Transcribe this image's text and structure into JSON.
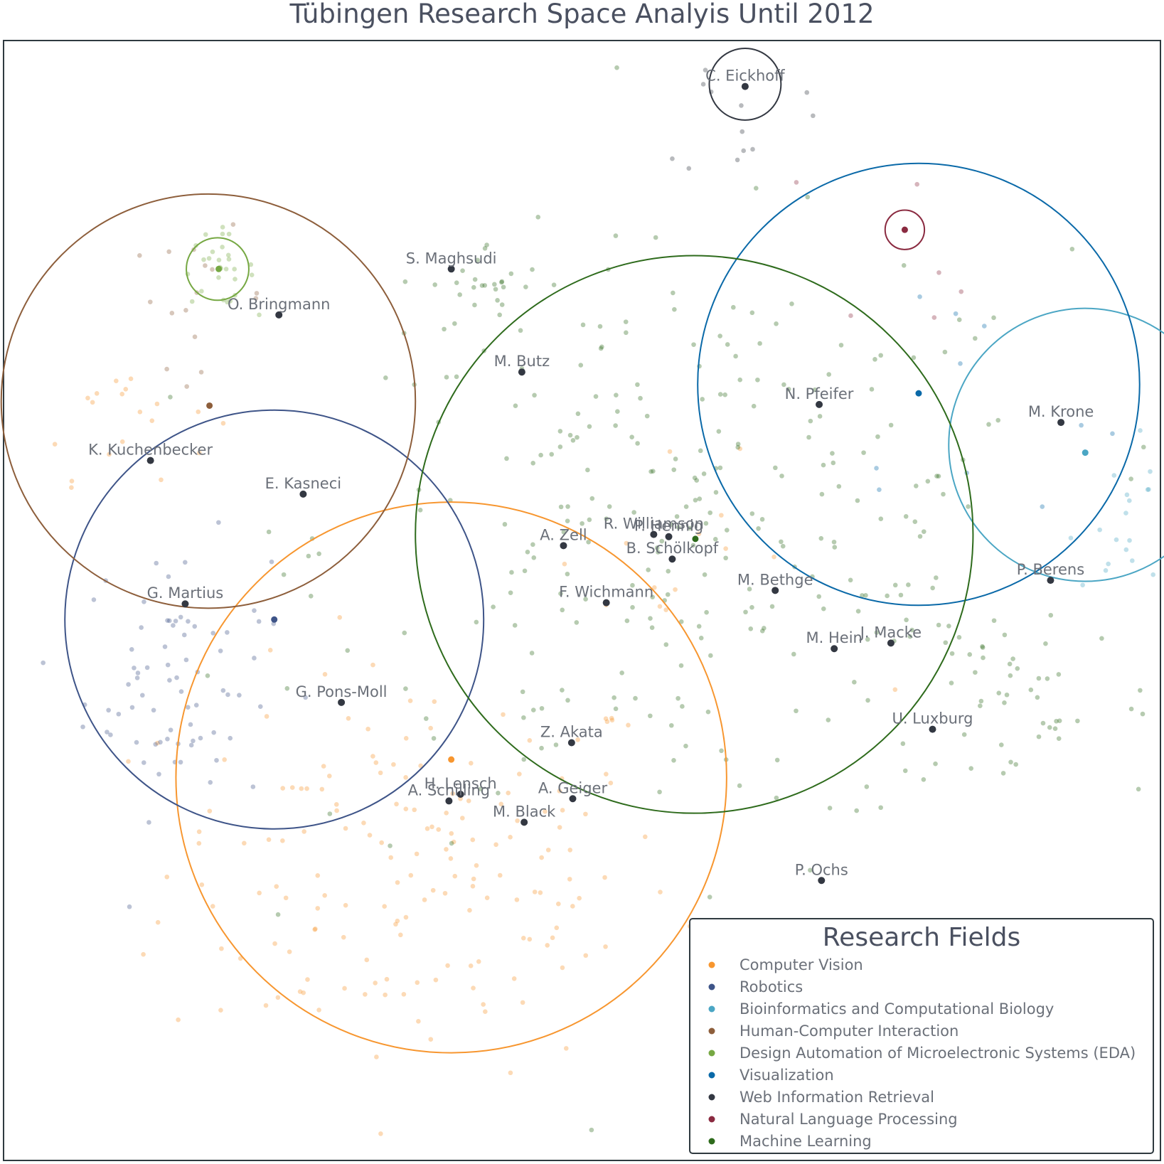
{
  "chart_data": {
    "type": "scatter",
    "title": "Tübingen Research Space Analyis Until 2012",
    "xlabel": "",
    "ylabel": "",
    "xlim": [
      0,
      100
    ],
    "ylim": [
      0,
      100
    ],
    "grid": false,
    "legend": {
      "title": "Research Fields",
      "placement": "bottom-right",
      "entries": [
        {
          "name": "Computer Vision",
          "color": "#f7962f"
        },
        {
          "name": "Robotics",
          "color": "#3e5488"
        },
        {
          "name": "Bioinformatics and Computational Biology",
          "color": "#4ba6c4"
        },
        {
          "name": "Human-Computer Interaction",
          "color": "#8d5e3b"
        },
        {
          "name": "Design Automation of Microelectronic Systems (EDA)",
          "color": "#76a843"
        },
        {
          "name": "Visualization",
          "color": "#0a69a8"
        },
        {
          "name": "Web Information Retrieval",
          "color": "#333842"
        },
        {
          "name": "Natural Language Processing",
          "color": "#8a2a40"
        },
        {
          "name": "Machine Learning",
          "color": "#2e6b1c"
        }
      ]
    },
    "field_circles": [
      {
        "field": "Computer Vision",
        "center": [
          38.7,
          34.2
        ],
        "radius": 23.8
      },
      {
        "field": "Robotics",
        "center": [
          23.4,
          48.3
        ],
        "radius": 18.1
      },
      {
        "field": "Bioinformatics and Computational Biology",
        "center": [
          93.5,
          63.9
        ],
        "radius": 11.8
      },
      {
        "field": "Human-Computer Interaction",
        "center": [
          17.7,
          67.8
        ],
        "radius": 17.9
      },
      {
        "field": "Design Automation of Microelectronic Systems (EDA)",
        "center": [
          18.5,
          79.6
        ],
        "radius": 2.7
      },
      {
        "field": "Visualization",
        "center": [
          79.1,
          69.3
        ],
        "radius": 19.1
      },
      {
        "field": "Web Information Retrieval",
        "center": [
          64.1,
          96.1
        ],
        "radius": 3.1
      },
      {
        "field": "Natural Language Processing",
        "center": [
          77.9,
          83.1
        ],
        "radius": 1.7
      },
      {
        "field": "Machine Learning",
        "center": [
          59.7,
          55.9
        ],
        "radius": 24.1
      }
    ],
    "authors": [
      {
        "name": "C. Eickhoff",
        "x": 64.1,
        "y": 95.9
      },
      {
        "name": "S. Maghsudi",
        "x": 38.7,
        "y": 79.6
      },
      {
        "name": "O. Bringmann",
        "x": 23.8,
        "y": 75.5
      },
      {
        "name": "M. Butz",
        "x": 44.8,
        "y": 70.4
      },
      {
        "name": "N. Pfeifer",
        "x": 70.5,
        "y": 67.5
      },
      {
        "name": "M. Krone",
        "x": 91.4,
        "y": 65.9
      },
      {
        "name": "K. Kuchenbecker",
        "x": 12.7,
        "y": 62.5
      },
      {
        "name": "E. Kasneci",
        "x": 25.9,
        "y": 59.5
      },
      {
        "name": "R. Williamson",
        "x": 56.2,
        "y": 55.9
      },
      {
        "name": "P. Hennig",
        "x": 57.5,
        "y": 55.7
      },
      {
        "name": "A. Zell",
        "x": 48.4,
        "y": 54.9
      },
      {
        "name": "B. Schölkopf",
        "x": 57.8,
        "y": 53.7
      },
      {
        "name": "M. Bethge",
        "x": 66.7,
        "y": 50.9
      },
      {
        "name": "P. Berens",
        "x": 90.5,
        "y": 51.8
      },
      {
        "name": "G. Martius",
        "x": 15.7,
        "y": 49.7
      },
      {
        "name": "F. Wichmann",
        "x": 52.1,
        "y": 49.8
      },
      {
        "name": "M. Hein",
        "x": 71.8,
        "y": 45.7
      },
      {
        "name": "J. Macke",
        "x": 76.7,
        "y": 46.2
      },
      {
        "name": "G. Pons-Moll",
        "x": 29.2,
        "y": 40.9
      },
      {
        "name": "Z. Akata",
        "x": 49.1,
        "y": 37.3
      },
      {
        "name": "U. Luxburg",
        "x": 80.3,
        "y": 38.5
      },
      {
        "name": "A. Geiger",
        "x": 49.2,
        "y": 32.3
      },
      {
        "name": "H. Lensch",
        "x": 39.5,
        "y": 32.7
      },
      {
        "name": "A. Schilling",
        "x": 38.5,
        "y": 32.1
      },
      {
        "name": "M. Black",
        "x": 45.0,
        "y": 30.2
      },
      {
        "name": "P. Ochs",
        "x": 70.7,
        "y": 25.0
      }
    ],
    "field_centroids": [
      {
        "field": "Computer Vision",
        "x": 38.7,
        "y": 35.8
      },
      {
        "field": "Robotics",
        "x": 23.4,
        "y": 48.3
      },
      {
        "field": "Bioinformatics and Computational Biology",
        "x": 93.5,
        "y": 63.2
      },
      {
        "field": "Human-Computer Interaction",
        "x": 17.8,
        "y": 67.4
      },
      {
        "field": "Design Automation of Microelectronic Systems (EDA)",
        "x": 18.6,
        "y": 79.6
      },
      {
        "field": "Visualization",
        "x": 79.1,
        "y": 68.5
      },
      {
        "field": "Natural Language Processing",
        "x": 77.9,
        "y": 83.1
      },
      {
        "field": "Machine Learning",
        "x": 59.8,
        "y": 55.5
      }
    ],
    "background_point_clusters": [
      {
        "field": "Computer Vision",
        "cx": 36,
        "cy": 26,
        "sx": 11,
        "sy": 9,
        "n": 170
      },
      {
        "field": "Computer Vision",
        "cx": 10,
        "cy": 67,
        "sx": 4,
        "sy": 3,
        "n": 20
      },
      {
        "field": "Computer Vision",
        "cx": 58,
        "cy": 52,
        "sx": 7,
        "sy": 5,
        "n": 14
      },
      {
        "field": "Robotics",
        "cx": 15,
        "cy": 43,
        "sx": 4,
        "sy": 6,
        "n": 75
      },
      {
        "field": "Human-Computer Interaction",
        "cx": 17,
        "cy": 77,
        "sx": 3,
        "sy": 3,
        "n": 16
      },
      {
        "field": "Design Automation of Microelectronic Systems (EDA)",
        "cx": 18.5,
        "cy": 79.6,
        "sx": 1.6,
        "sy": 1.6,
        "n": 28
      },
      {
        "field": "Machine Learning",
        "cx": 60,
        "cy": 55,
        "sx": 16,
        "sy": 13,
        "n": 290
      },
      {
        "field": "Machine Learning",
        "cx": 88,
        "cy": 42,
        "sx": 6,
        "sy": 5,
        "n": 45
      },
      {
        "field": "Machine Learning",
        "cx": 42,
        "cy": 78,
        "sx": 2.5,
        "sy": 2,
        "n": 26
      },
      {
        "field": "Bioinformatics and Computational Biology",
        "cx": 97,
        "cy": 58,
        "sx": 2.2,
        "sy": 4,
        "n": 22
      },
      {
        "field": "Web Information Retrieval",
        "cx": 64,
        "cy": 93,
        "sx": 2.5,
        "sy": 3,
        "n": 12
      },
      {
        "field": "Natural Language Processing",
        "cx": 79,
        "cy": 83,
        "sx": 4,
        "sy": 4,
        "n": 6
      },
      {
        "field": "Visualization",
        "cx": 83,
        "cy": 68,
        "sx": 7,
        "sy": 7,
        "n": 10
      }
    ]
  }
}
